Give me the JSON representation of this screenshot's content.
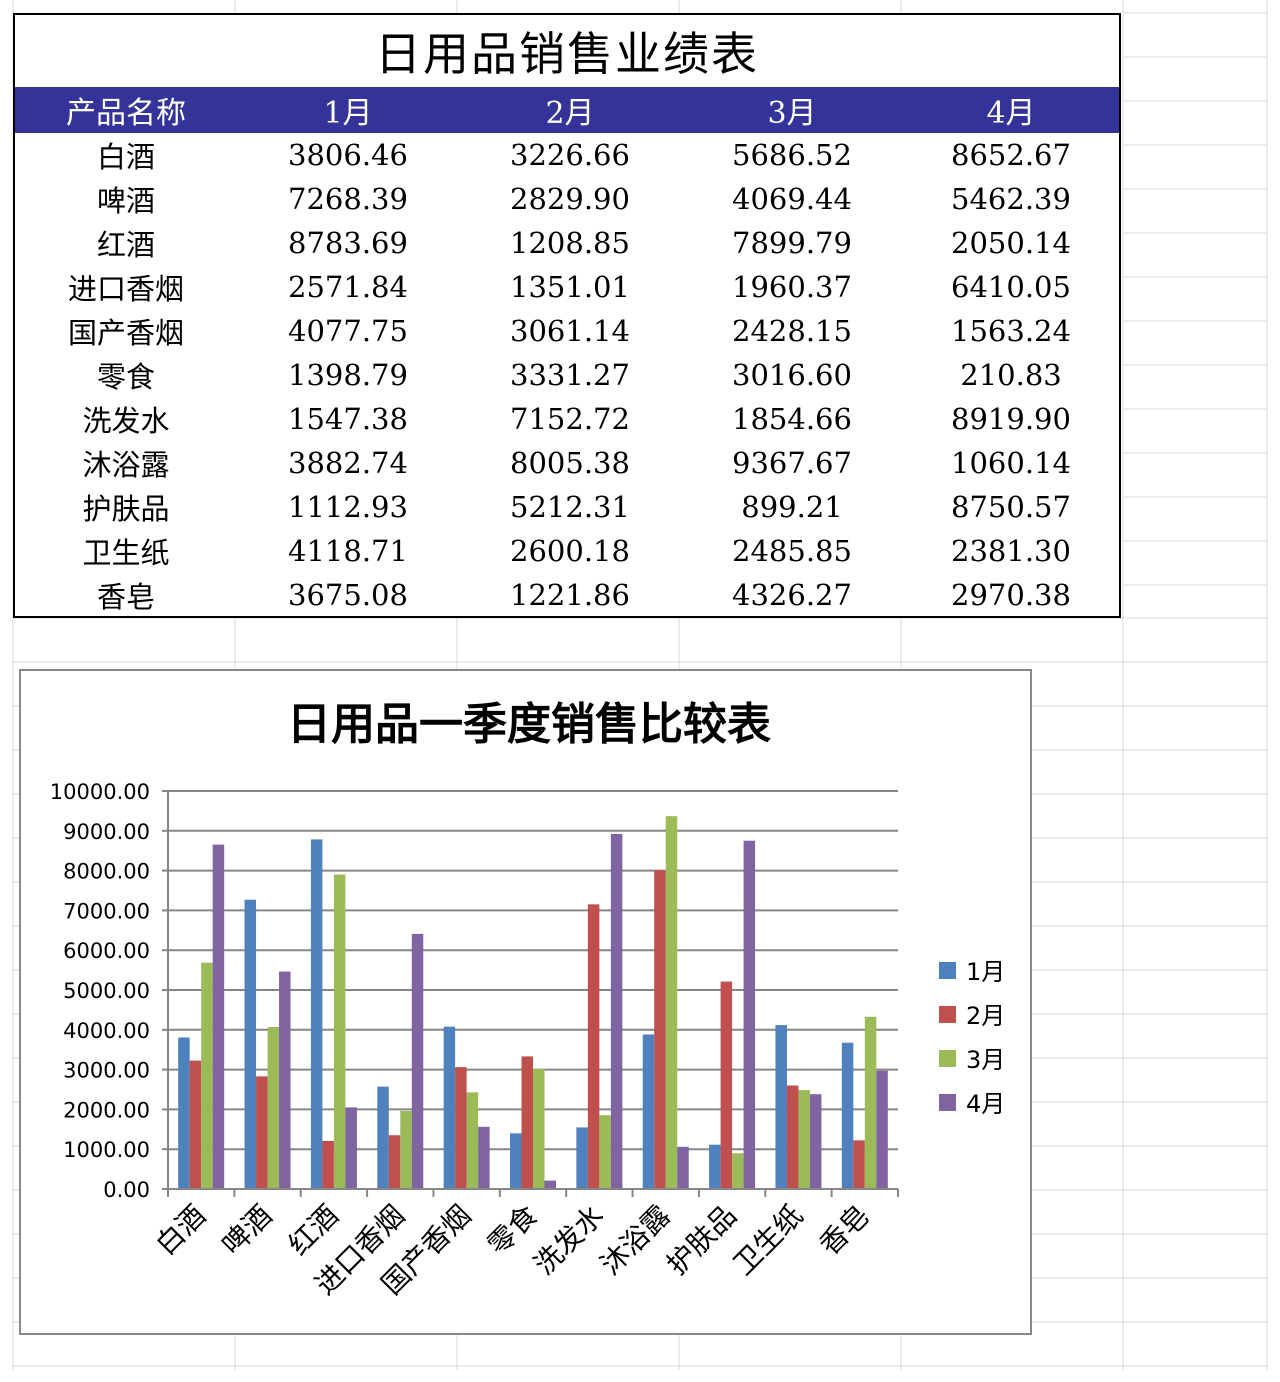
{
  "table": {
    "title": "日用品销售业绩表",
    "headers": [
      "产品名称",
      "1月",
      "2月",
      "3月",
      "4月"
    ],
    "rows": [
      [
        "白酒",
        "3806.46",
        "3226.66",
        "5686.52",
        "8652.67"
      ],
      [
        "啤酒",
        "7268.39",
        "2829.90",
        "4069.44",
        "5462.39"
      ],
      [
        "红酒",
        "8783.69",
        "1208.85",
        "7899.79",
        "2050.14"
      ],
      [
        "进口香烟",
        "2571.84",
        "1351.01",
        "1960.37",
        "6410.05"
      ],
      [
        "国产香烟",
        "4077.75",
        "3061.14",
        "2428.15",
        "1563.24"
      ],
      [
        "零食",
        "1398.79",
        "3331.27",
        "3016.60",
        "210.83"
      ],
      [
        "洗发水",
        "1547.38",
        "7152.72",
        "1854.66",
        "8919.90"
      ],
      [
        "沐浴露",
        "3882.74",
        "8005.38",
        "9367.67",
        "1060.14"
      ],
      [
        "护肤品",
        "1112.93",
        "5212.31",
        "899.21",
        "8750.57"
      ],
      [
        "卫生纸",
        "4118.71",
        "2600.18",
        "2485.85",
        "2381.30"
      ],
      [
        "香皂",
        "3675.08",
        "1221.86",
        "4326.27",
        "2970.38"
      ]
    ]
  },
  "chart_data": {
    "type": "bar",
    "title": "日用品一季度销售比较表",
    "xlabel": "",
    "ylabel": "",
    "categories": [
      "白酒",
      "啤酒",
      "红酒",
      "进口香烟",
      "国产香烟",
      "零食",
      "洗发水",
      "沐浴露",
      "护肤品",
      "卫生纸",
      "香皂"
    ],
    "series": [
      {
        "name": "1月",
        "color": "#4F81BD",
        "values": [
          3806.46,
          7268.39,
          8783.69,
          2571.84,
          4077.75,
          1398.79,
          1547.38,
          3882.74,
          1112.93,
          4118.71,
          3675.08
        ]
      },
      {
        "name": "2月",
        "color": "#C0504D",
        "values": [
          3226.66,
          2829.9,
          1208.85,
          1351.01,
          3061.14,
          3331.27,
          7152.72,
          8005.38,
          5212.31,
          2600.18,
          1221.86
        ]
      },
      {
        "name": "3月",
        "color": "#9BBB59",
        "values": [
          5686.52,
          4069.44,
          7899.79,
          1960.37,
          2428.15,
          3016.6,
          1854.66,
          9367.67,
          899.21,
          2485.85,
          4326.27
        ]
      },
      {
        "name": "4月",
        "color": "#8064A2",
        "values": [
          8652.67,
          5462.39,
          2050.14,
          6410.05,
          1563.24,
          210.83,
          8919.9,
          1060.14,
          8750.57,
          2381.3,
          2970.38
        ]
      }
    ],
    "ylim": [
      0,
      10000
    ],
    "yticks": [
      "0.00",
      "1000.00",
      "2000.00",
      "3000.00",
      "4000.00",
      "5000.00",
      "6000.00",
      "7000.00",
      "8000.00",
      "9000.00",
      "10000.00"
    ],
    "grid": true,
    "legend_position": "right"
  }
}
